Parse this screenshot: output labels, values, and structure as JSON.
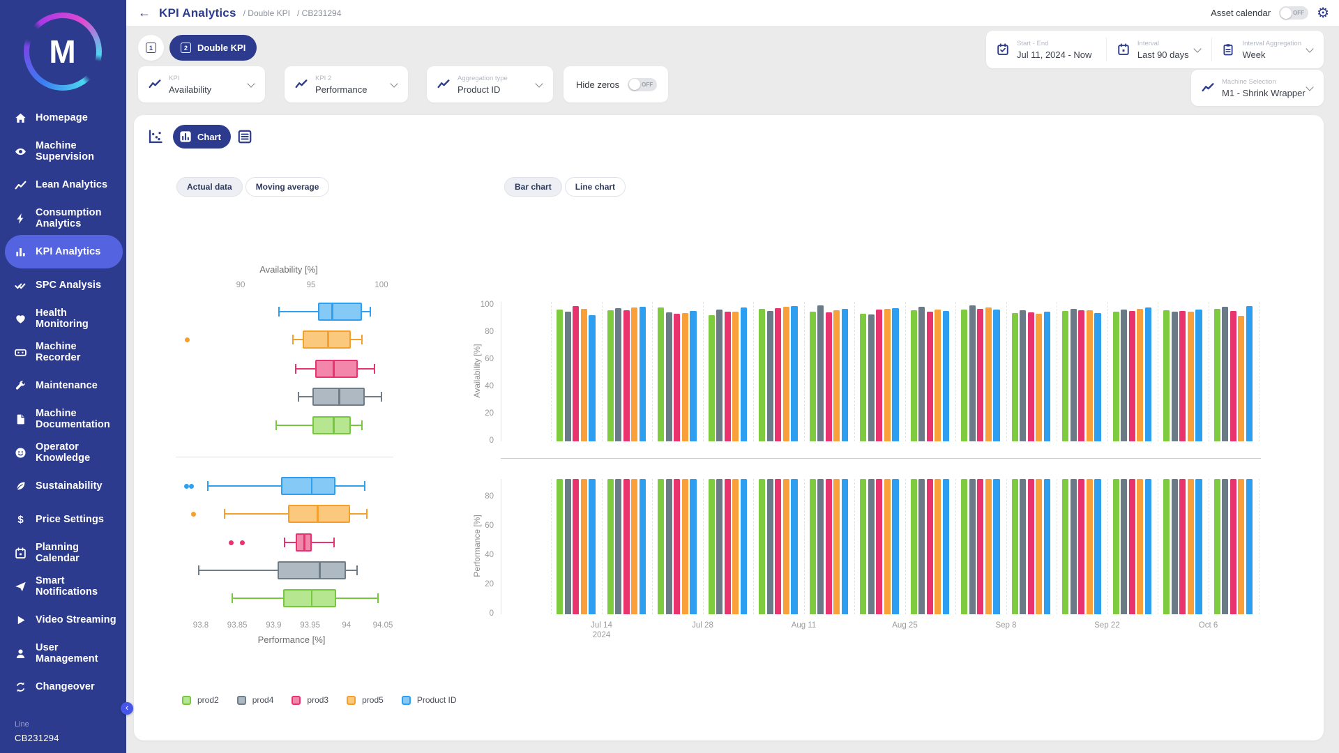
{
  "header": {
    "title": "KPI Analytics",
    "breadcrumb1": "/ Double KPI",
    "breadcrumb2": "/ CB231294",
    "asset_calendar_label": "Asset calendar",
    "asset_calendar_state": "OFF"
  },
  "sidebar": {
    "logo_letter": "M",
    "items": [
      {
        "label": "Homepage",
        "icon": "home-icon",
        "active": false
      },
      {
        "label": "Machine Supervision",
        "icon": "eye-icon",
        "active": false
      },
      {
        "label": "Lean Analytics",
        "icon": "line-chart-icon",
        "active": false
      },
      {
        "label": "Consumption Analytics",
        "icon": "bolt-icon",
        "active": false
      },
      {
        "label": "KPI Analytics",
        "icon": "bar-chart-icon",
        "active": true
      },
      {
        "label": "SPC Analysis",
        "icon": "double-check-icon",
        "active": false
      },
      {
        "label": "Health Monitoring",
        "icon": "heart-icon",
        "active": false
      },
      {
        "label": "Machine Recorder",
        "icon": "recorder-icon",
        "active": false
      },
      {
        "label": "Maintenance",
        "icon": "wrench-icon",
        "active": false
      },
      {
        "label": "Machine Documentation",
        "icon": "document-icon",
        "active": false
      },
      {
        "label": "Operator Knowledge",
        "icon": "operator-icon",
        "active": false
      },
      {
        "label": "Sustainability",
        "icon": "leaf-icon",
        "active": false
      },
      {
        "label": "Price Settings",
        "icon": "dollar-icon",
        "active": false
      },
      {
        "label": "Planning Calendar",
        "icon": "calendar-icon",
        "active": false
      },
      {
        "label": "Smart Notifications",
        "icon": "send-icon",
        "active": false
      },
      {
        "label": "Video Streaming",
        "icon": "play-icon",
        "active": false
      },
      {
        "label": "User Management",
        "icon": "user-icon",
        "active": false
      },
      {
        "label": "Changeover",
        "icon": "changeover-icon",
        "active": false
      }
    ],
    "line_label": "Line",
    "line_value": "CB231294"
  },
  "tabs": {
    "tab1_number": "1",
    "tab2_number": "2",
    "tab2_label": "Double KPI"
  },
  "filters": {
    "kpi": {
      "label": "KPI",
      "value": "Availability"
    },
    "kpi2": {
      "label": "KPI 2",
      "value": "Performance"
    },
    "aggregation": {
      "label": "Aggregation type",
      "value": "Product ID"
    },
    "hide_zeros": {
      "label": "Hide zeros",
      "state": "OFF"
    },
    "start_end": {
      "label": "Start - End",
      "value": "Jul 11, 2024 - Now"
    },
    "interval": {
      "label": "Interval",
      "value": "Last 90 days"
    },
    "interval_aggregation": {
      "label": "Interval Aggregation",
      "value": "Week"
    },
    "machine_selection": {
      "label": "Machine Selection",
      "value": "M1 - Shrink Wrapper"
    }
  },
  "toolbar": {
    "chart_label": "Chart"
  },
  "chart_controls": {
    "data_modes": [
      {
        "label": "Actual data",
        "selected": true
      },
      {
        "label": "Moving average",
        "selected": false
      }
    ],
    "chart_types": [
      {
        "label": "Bar chart",
        "selected": true
      },
      {
        "label": "Line chart",
        "selected": false
      }
    ]
  },
  "colors": {
    "accent": "#2d3b8e",
    "active_item": "#5463e0",
    "palette": {
      "green": {
        "bar": "#7ecb3f",
        "stroke": "#76c93f",
        "fill": "#b7e690"
      },
      "gray": {
        "bar": "#6b7a87",
        "stroke": "#6f7d89",
        "fill": "#aeb9c2"
      },
      "pink": {
        "bar": "#e8336e",
        "stroke": "#e8336e",
        "fill": "#f287ab"
      },
      "orange": {
        "bar": "#f9a03a",
        "stroke": "#f5a02c",
        "fill": "#fac97e"
      },
      "blue": {
        "bar": "#2e9ef0",
        "stroke": "#2f9ff0",
        "fill": "#85c9f7"
      }
    }
  },
  "legend": {
    "items": [
      {
        "label": "prod2",
        "color": "green"
      },
      {
        "label": "prod4",
        "color": "gray"
      },
      {
        "label": "prod3",
        "color": "pink"
      },
      {
        "label": "prod5",
        "color": "orange"
      },
      {
        "label": "Product ID",
        "color": "blue"
      }
    ]
  },
  "chart_data": [
    {
      "type": "boxplot",
      "title": "Availability [%]",
      "axis_side": "top",
      "range": [
        90,
        100
      ],
      "ticks": [
        "90",
        "95",
        "100"
      ],
      "tick_values": [
        90,
        95,
        100
      ],
      "series": [
        {
          "name": "Product ID",
          "color": "blue",
          "low": 92.7,
          "q1": 95.5,
          "median": 96.5,
          "q3": 98.6,
          "high": 99.2,
          "outliers": []
        },
        {
          "name": "prod5",
          "color": "orange",
          "low": 93.7,
          "q1": 94.4,
          "median": 96.2,
          "q3": 97.8,
          "high": 98.6,
          "outliers": [
            86.2
          ]
        },
        {
          "name": "prod3",
          "color": "pink",
          "low": 93.9,
          "q1": 95.3,
          "median": 96.6,
          "q3": 98.3,
          "high": 99.5,
          "outliers": []
        },
        {
          "name": "prod4",
          "color": "gray",
          "low": 94.1,
          "q1": 95.1,
          "median": 97.0,
          "q3": 98.8,
          "high": 100,
          "outliers": []
        },
        {
          "name": "prod2",
          "color": "green",
          "low": 92.5,
          "q1": 95.1,
          "median": 96.6,
          "q3": 97.8,
          "high": 98.6,
          "outliers": []
        }
      ]
    },
    {
      "type": "boxplot",
      "title": "Performance [%]",
      "axis_side": "bottom",
      "range": [
        93.8,
        94.05
      ],
      "ticks": [
        "93.8",
        "93.85",
        "93.9",
        "93.95",
        "94",
        "94.05"
      ],
      "tick_values": [
        93.8,
        93.85,
        93.9,
        93.95,
        94,
        94.05
      ],
      "series": [
        {
          "name": "Product ID",
          "color": "blue",
          "low": 93.81,
          "q1": 93.91,
          "median": 93.952,
          "q3": 93.985,
          "high": 94.025,
          "outliers": [
            93.78,
            93.787
          ]
        },
        {
          "name": "prod5",
          "color": "orange",
          "low": 93.833,
          "q1": 93.92,
          "median": 93.96,
          "q3": 94.005,
          "high": 94.028,
          "outliers": [
            93.79
          ]
        },
        {
          "name": "prod3",
          "color": "pink",
          "low": 93.915,
          "q1": 93.93,
          "median": 93.942,
          "q3": 93.952,
          "high": 93.983,
          "outliers": [
            93.842,
            93.857
          ]
        },
        {
          "name": "prod4",
          "color": "gray",
          "low": 93.797,
          "q1": 93.905,
          "median": 93.963,
          "q3": 93.999,
          "high": 94.015,
          "outliers": []
        },
        {
          "name": "prod2",
          "color": "green",
          "low": 93.843,
          "q1": 93.913,
          "median": 93.952,
          "q3": 93.986,
          "high": 94.043,
          "outliers": []
        }
      ]
    },
    {
      "type": "bar",
      "title": "Availability by week",
      "ylabel": "Availability [%]",
      "ylim": [
        0,
        100
      ],
      "yticks": [
        "0",
        "20",
        "40",
        "60",
        "80",
        "100"
      ],
      "ytick_values": [
        0,
        20,
        40,
        60,
        80,
        100
      ],
      "xticks": [
        {
          "line1": "Jul 14",
          "line2": "2024"
        },
        {
          "line1": "Jul 28",
          "line2": ""
        },
        {
          "line1": "Aug 11",
          "line2": ""
        },
        {
          "line1": "Aug 25",
          "line2": ""
        },
        {
          "line1": "Sep 8",
          "line2": ""
        },
        {
          "line1": "Sep 22",
          "line2": ""
        },
        {
          "line1": "Oct 6",
          "line2": ""
        }
      ],
      "series_order": [
        "prod2",
        "prod4",
        "prod3",
        "prod5",
        "Product ID"
      ],
      "series_colors": [
        "green",
        "gray",
        "pink",
        "orange",
        "blue"
      ],
      "weeks": [
        [
          97,
          95.5,
          99.5,
          97.5,
          93
        ],
        [
          96.5,
          98,
          96.5,
          98.5,
          99
        ],
        [
          98.5,
          95,
          94,
          94.5,
          96
        ],
        [
          93,
          97,
          95.5,
          95.5,
          98.5
        ],
        [
          97.5,
          96,
          98,
          99,
          99.5
        ],
        [
          95.5,
          100,
          95,
          96.5,
          97.5
        ],
        [
          94,
          93.5,
          97,
          97.5,
          98
        ],
        [
          96.5,
          99,
          95.5,
          97,
          96
        ],
        [
          97,
          100,
          97.5,
          98.5,
          97
        ],
        [
          94.5,
          96.5,
          95,
          94,
          95.5
        ],
        [
          96,
          97.5,
          96.5,
          96.5,
          94.5
        ],
        [
          95.5,
          97,
          96,
          97.5,
          98.5
        ],
        [
          96.5,
          95.5,
          96,
          95.5,
          97
        ],
        [
          97.5,
          99,
          96,
          92.5,
          99.5
        ]
      ]
    },
    {
      "type": "bar",
      "title": "Performance by week",
      "ylabel": "Performance [%]",
      "ylim": [
        0,
        80
      ],
      "yticks": [
        "0",
        "20",
        "40",
        "60",
        "80"
      ],
      "ytick_values": [
        0,
        20,
        40,
        60,
        80
      ],
      "series_order": [
        "prod2",
        "prod4",
        "prod3",
        "prod5",
        "Product ID"
      ],
      "series_colors": [
        "green",
        "gray",
        "pink",
        "orange",
        "blue"
      ],
      "weeks": [
        [
          93.9,
          93.9,
          93.9,
          93.9,
          93.9
        ],
        [
          93.9,
          93.9,
          93.9,
          93.9,
          93.9
        ],
        [
          93.9,
          93.9,
          93.9,
          93.9,
          93.9
        ],
        [
          93.9,
          93.9,
          93.9,
          93.9,
          93.9
        ],
        [
          93.9,
          93.9,
          93.9,
          93.9,
          93.9
        ],
        [
          93.9,
          93.9,
          93.9,
          93.9,
          93.9
        ],
        [
          93.9,
          93.9,
          93.9,
          93.9,
          93.9
        ],
        [
          93.9,
          93.9,
          93.9,
          93.9,
          93.9
        ],
        [
          93.9,
          93.9,
          93.9,
          93.9,
          93.9
        ],
        [
          93.9,
          93.9,
          93.9,
          93.9,
          93.9
        ],
        [
          93.9,
          93.9,
          93.9,
          93.9,
          93.9
        ],
        [
          93.9,
          93.9,
          93.9,
          93.9,
          93.9
        ],
        [
          93.9,
          93.9,
          93.9,
          93.9,
          93.9
        ],
        [
          93.9,
          93.9,
          93.9,
          93.9,
          93.9
        ]
      ]
    }
  ]
}
